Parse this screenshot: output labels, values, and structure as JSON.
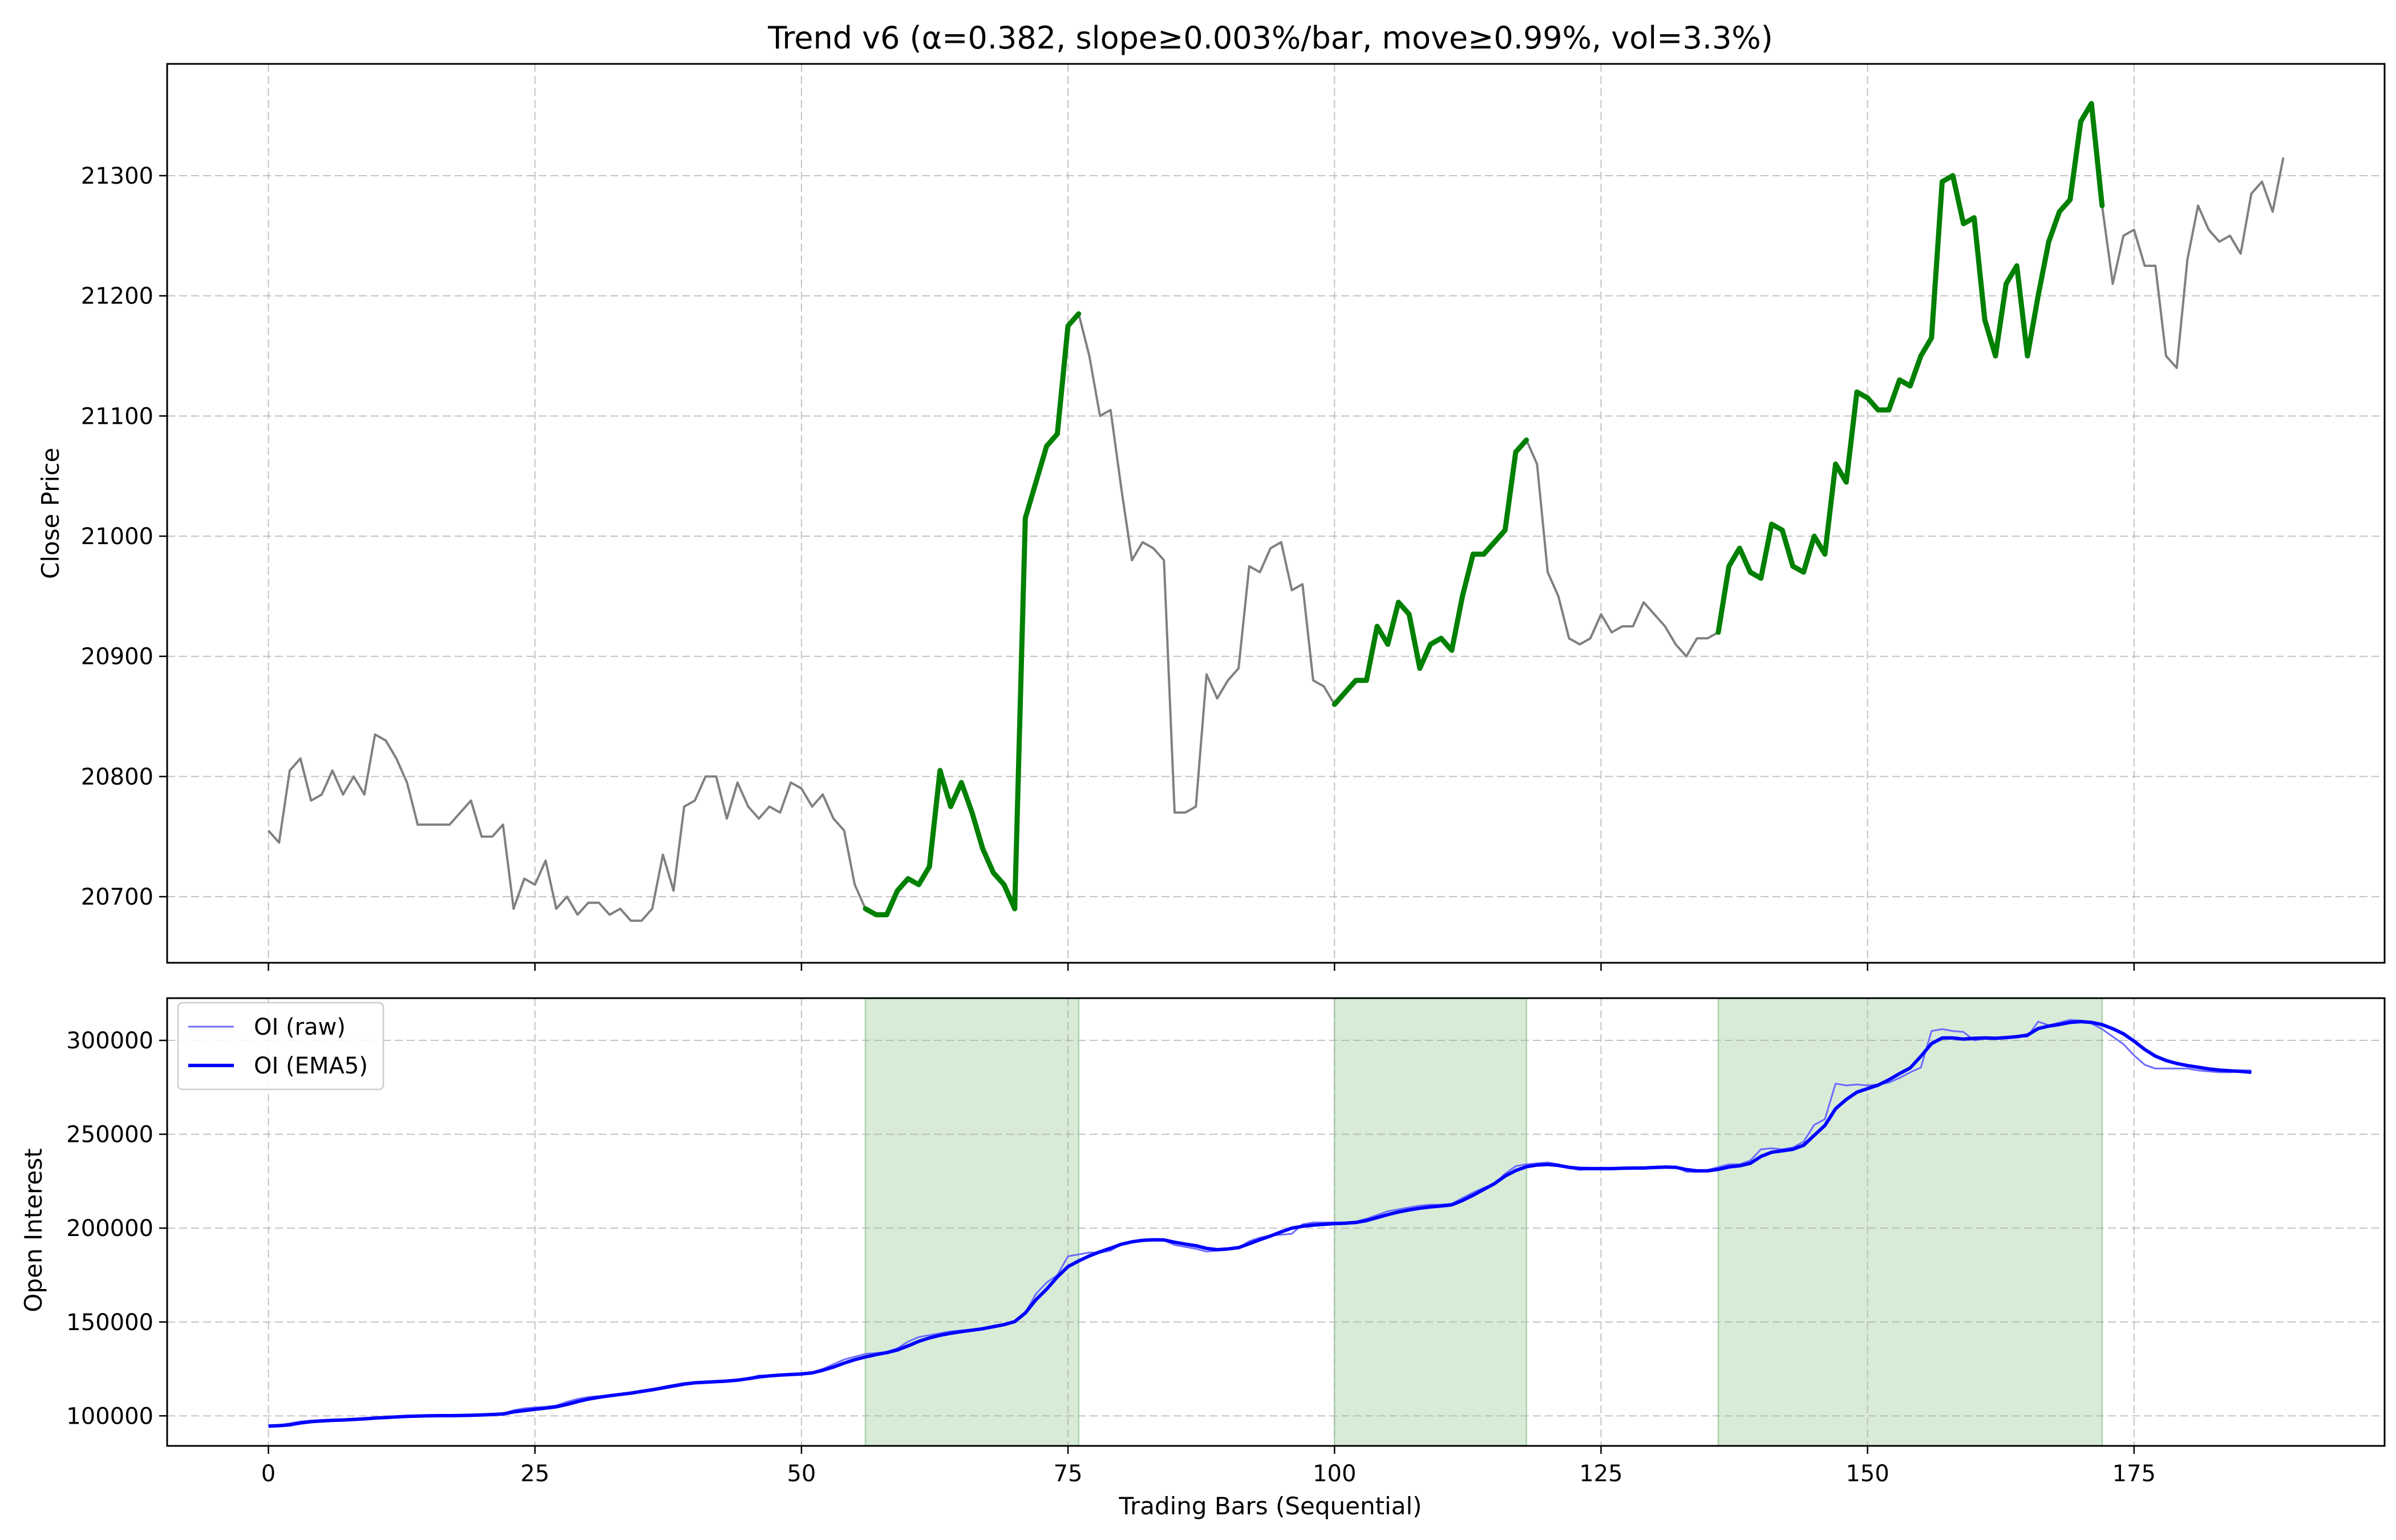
{
  "chart_data": [
    {
      "type": "line",
      "title": "Trend v6 (α=0.382, slope≥0.003%/bar, move≥0.99%, vol=3.3%)",
      "xlabel": "",
      "ylabel": "Close Price",
      "xlim": [
        -9.5,
        198.5
      ],
      "ylim": [
        20645,
        21393
      ],
      "grid": true,
      "xticks": [
        0,
        25,
        50,
        75,
        100,
        125,
        150,
        175
      ],
      "xtick_labels": [
        "",
        "",
        "",
        "",
        "",
        "",
        "",
        ""
      ],
      "yticks": [
        20700,
        20800,
        20900,
        21000,
        21100,
        21200,
        21300
      ],
      "ytick_labels": [
        "20700",
        "20800",
        "20900",
        "21000",
        "21100",
        "21200",
        "21300"
      ],
      "colors": {
        "base": "#808080",
        "trend": "#008000"
      },
      "series": [
        {
          "role": "close",
          "x_start": 0,
          "values": [
            20755,
            20745,
            20805,
            20815,
            20780,
            20785,
            20805,
            20785,
            20800,
            20785,
            20835,
            20830,
            20815,
            20795,
            20760,
            20760,
            20760,
            20760,
            20770,
            20780,
            20750,
            20750,
            20760,
            20690,
            20715,
            20710,
            20730,
            20690,
            20700,
            20685,
            20695,
            20695,
            20685,
            20690,
            20680,
            20680,
            20690,
            20735,
            20705,
            20775,
            20780,
            20800,
            20800,
            20765,
            20795,
            20775,
            20765,
            20775,
            20770,
            20795,
            20790,
            20775,
            20785,
            20765,
            20755,
            20710,
            20690,
            20685,
            20685,
            20705,
            20715,
            20710,
            20725,
            20805,
            20775,
            20795,
            20770,
            20740,
            20720,
            20710,
            20690,
            21015,
            21045,
            21075,
            21085,
            21175,
            21185,
            21150,
            21100,
            21105,
            21040,
            20980,
            20995,
            20990,
            20980,
            20770,
            20770,
            20775,
            20885,
            20865,
            20880,
            20890,
            20975,
            20970,
            20990,
            20995,
            20955,
            20960,
            20880,
            20875,
            20860,
            20870,
            20880,
            20880,
            20925,
            20910,
            20945,
            20935,
            20890,
            20910,
            20915,
            20905,
            20950,
            20985,
            20985,
            20995,
            21005,
            21070,
            21080,
            21060,
            20970,
            20950,
            20915,
            20910,
            20915,
            20935,
            20920,
            20925,
            20925,
            20945,
            20935,
            20925,
            20910,
            20900,
            20915,
            20915,
            20920,
            20975,
            20990,
            20970,
            20965,
            21010,
            21005,
            20975,
            20970,
            21000,
            20985,
            21060,
            21045,
            21120,
            21115,
            21105,
            21105,
            21130,
            21125,
            21150,
            21165,
            21295,
            21300,
            21260,
            21265,
            21180,
            21150,
            21210,
            21225,
            21150,
            21200,
            21245,
            21270,
            21280,
            21345,
            21360,
            21275,
            21210,
            21250,
            21255,
            21225,
            21225,
            21150,
            21140,
            21230,
            21275,
            21255,
            21245,
            21250,
            21235,
            21285,
            21295,
            21270,
            21315
          ]
        }
      ],
      "trend_segments": [
        [
          56,
          70
        ],
        [
          70,
          76
        ],
        [
          100,
          118
        ],
        [
          136,
          172
        ]
      ]
    },
    {
      "type": "line",
      "title": "",
      "xlabel": "Trading Bars (Sequential)",
      "ylabel": "Open Interest",
      "xlim": [
        -9.5,
        198.5
      ],
      "ylim": [
        84000,
        322500
      ],
      "grid": true,
      "xticks": [
        0,
        25,
        50,
        75,
        100,
        125,
        150,
        175
      ],
      "xtick_labels": [
        "0",
        "25",
        "50",
        "75",
        "100",
        "125",
        "150",
        "175"
      ],
      "yticks": [
        100000,
        150000,
        200000,
        250000,
        300000
      ],
      "ytick_labels": [
        "100000",
        "150000",
        "200000",
        "250000",
        "300000"
      ],
      "legend": {
        "position": "upper-left",
        "entries": [
          "OI (raw)",
          "OI (EMA5)"
        ]
      },
      "shaded_regions": [
        [
          56,
          76
        ],
        [
          100,
          118
        ],
        [
          136,
          172
        ]
      ],
      "colors": {
        "raw": "#6b6bff",
        "ema": "#0000ff",
        "shade": "#d7ebd7",
        "shade_edge": "#a8d4a8"
      },
      "series": [
        {
          "name": "OI (raw)",
          "x_start": 0,
          "values": [
            95000,
            95000,
            96000,
            97000,
            97500,
            97800,
            98000,
            98200,
            98500,
            98800,
            99000,
            99300,
            99600,
            99800,
            100000,
            100100,
            100100,
            100200,
            100300,
            100500,
            100800,
            101000,
            101200,
            103000,
            104000,
            104500,
            104800,
            105500,
            107500,
            109000,
            110000,
            110500,
            111000,
            111500,
            112000,
            113000,
            114000,
            115500,
            116500,
            117500,
            118000,
            118000,
            118000,
            118500,
            119000,
            120000,
            121500,
            121500,
            121500,
            122000,
            122000,
            123000,
            125000,
            127500,
            130000,
            131500,
            133000,
            133500,
            134000,
            136000,
            139500,
            142000,
            143000,
            144000,
            145000,
            145500,
            146000,
            146500,
            148000,
            149000,
            150000,
            155000,
            165000,
            171000,
            175000,
            185000,
            186000,
            187000,
            187000,
            188000,
            191500,
            193000,
            193500,
            194000,
            193500,
            191000,
            190000,
            189000,
            187500,
            188000,
            189000,
            189500,
            193000,
            195000,
            196000,
            196500,
            197000,
            202000,
            203000,
            203000,
            203000,
            203000,
            203500,
            205000,
            207000,
            209000,
            210000,
            211000,
            212000,
            212500,
            212500,
            213000,
            216000,
            219000,
            221500,
            223500,
            229000,
            233000,
            234000,
            234500,
            235000,
            234000,
            232000,
            231000,
            231500,
            231500,
            231500,
            232000,
            232000,
            232000,
            232500,
            233000,
            232500,
            230000,
            230000,
            231000,
            232500,
            234000,
            234000,
            236000,
            242000,
            242500,
            242000,
            243000,
            246000,
            255000,
            258000,
            277000,
            276000,
            276500,
            276000,
            276500,
            277500,
            280000,
            283000,
            285500,
            305000,
            306000,
            305000,
            304500,
            300000,
            301000,
            301500,
            301000,
            302000,
            302000,
            310000,
            308000,
            309500,
            311000,
            310500,
            309000,
            306000,
            302000,
            298000,
            292000,
            287000,
            285000,
            285000,
            285000,
            285000,
            284000,
            283500,
            283000,
            283000,
            284000,
            284000
          ]
        },
        {
          "name": "OI (EMA5)",
          "x_start": 0,
          "values": [
            94500,
            94800,
            95200,
            96200,
            96900,
            97300,
            97600,
            97800,
            98100,
            98400,
            98800,
            99100,
            99400,
            99700,
            99900,
            100000,
            100100,
            100100,
            100200,
            100300,
            100500,
            100700,
            101000,
            102100,
            102800,
            103500,
            104100,
            104800,
            106100,
            107600,
            108900,
            109900,
            110700,
            111400,
            112100,
            113000,
            113900,
            114900,
            115900,
            116900,
            117600,
            117900,
            118200,
            118500,
            119000,
            119800,
            120700,
            121300,
            121700,
            122000,
            122300,
            122900,
            124300,
            126000,
            128100,
            129900,
            131400,
            132600,
            133700,
            135100,
            137300,
            139700,
            141500,
            142900,
            144000,
            144900,
            145600,
            146400,
            147500,
            148600,
            150200,
            154800,
            161900,
            167500,
            174000,
            179500,
            182500,
            185200,
            187400,
            189300,
            191400,
            192700,
            193500,
            193800,
            193700,
            192500,
            191500,
            190600,
            189200,
            188500,
            188900,
            189600,
            191700,
            193800,
            195800,
            198000,
            200000,
            201000,
            201600,
            202000,
            202400,
            202600,
            203000,
            204000,
            205600,
            207200,
            208600,
            209700,
            210600,
            211300,
            211800,
            212400,
            214700,
            217500,
            220600,
            223700,
            227700,
            230700,
            232700,
            233600,
            233900,
            233400,
            232400,
            231800,
            231700,
            231700,
            231700,
            231900,
            232000,
            232000,
            232300,
            232500,
            232400,
            231200,
            230500,
            230500,
            231300,
            232600,
            233200,
            234500,
            238200,
            240400,
            241200,
            242000,
            244100,
            249400,
            254700,
            263600,
            268500,
            272400,
            274300,
            276200,
            279000,
            282300,
            285300,
            291500,
            298300,
            301300,
            301300,
            300700,
            301100,
            301300,
            301100,
            301500,
            302000,
            302800,
            306300,
            307600,
            308500,
            309600,
            310000,
            309600,
            308400,
            306200,
            303500,
            299600,
            295200,
            291600,
            289300,
            287700,
            286600,
            285700,
            284800,
            284200,
            283800,
            283500,
            283000
          ]
        }
      ]
    }
  ]
}
